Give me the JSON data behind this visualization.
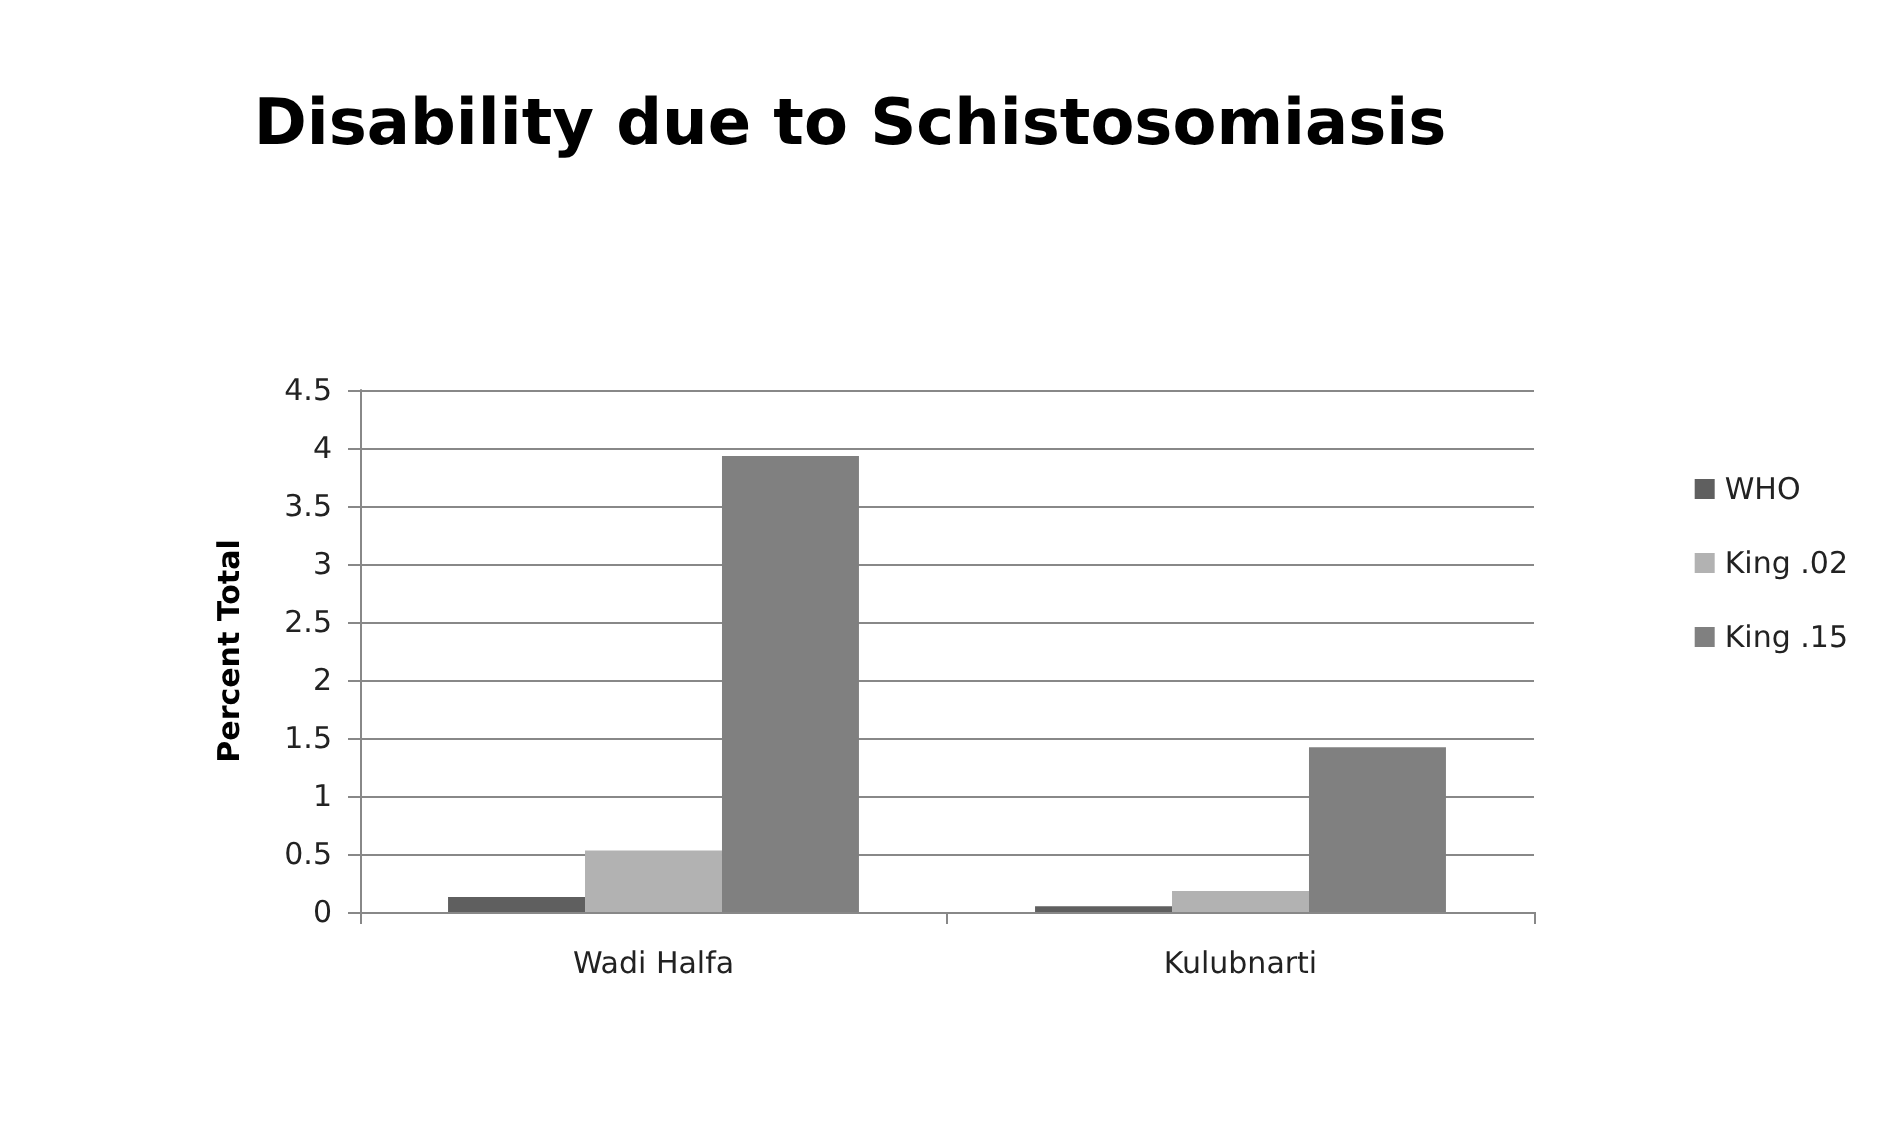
{
  "chart_data": {
    "type": "bar",
    "title": "Disability due to Schistosomiasis",
    "ylabel": "Percent Total",
    "categories": [
      "Wadi Halfa",
      "Kulubnarti"
    ],
    "series": [
      {
        "name": "WHO",
        "color": "#5f5f5f",
        "values": [
          0.13,
          0.05
        ]
      },
      {
        "name": "King .02",
        "color": "#b2b2b2",
        "values": [
          0.53,
          0.18
        ]
      },
      {
        "name": "King .15",
        "color": "#808080",
        "values": [
          3.93,
          1.42
        ]
      }
    ],
    "ylim": [
      0,
      4.5
    ],
    "yticks": [
      0,
      0.5,
      1,
      1.5,
      2,
      2.5,
      3,
      3.5,
      4,
      4.5
    ],
    "grid": "y",
    "legend": "right"
  }
}
